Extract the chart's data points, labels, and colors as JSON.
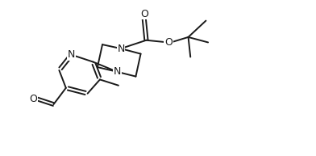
{
  "bg_color": "#ffffff",
  "line_color": "#1a1a1a",
  "line_width": 1.4,
  "font_size": 8.5,
  "figsize": [
    3.92,
    1.93
  ],
  "dpi": 100,
  "xlim": [
    0,
    10
  ],
  "ylim": [
    0,
    5
  ]
}
